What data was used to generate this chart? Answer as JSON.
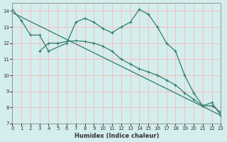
{
  "xlabel": "Humidex (Indice chaleur)",
  "xlim": [
    0,
    23
  ],
  "ylim": [
    7,
    14.5
  ],
  "yticks": [
    7,
    8,
    9,
    10,
    11,
    12,
    13,
    14
  ],
  "xticks": [
    0,
    1,
    2,
    3,
    4,
    5,
    6,
    7,
    8,
    9,
    10,
    11,
    12,
    13,
    14,
    15,
    16,
    17,
    18,
    19,
    20,
    21,
    22,
    23
  ],
  "bg_color": "#d4eded",
  "line_color": "#2e7d6e",
  "grid_color": "#f5bfbf",
  "line1_x": [
    0,
    1,
    2,
    3,
    4,
    6,
    7,
    8,
    9,
    10,
    11,
    12,
    13,
    14,
    15,
    16,
    17,
    18,
    19,
    20,
    21,
    22,
    23
  ],
  "line1_y": [
    14.1,
    13.4,
    12.5,
    12.5,
    11.5,
    12.0,
    13.3,
    13.55,
    13.3,
    12.9,
    12.65,
    13.0,
    13.3,
    14.1,
    13.8,
    13.0,
    12.0,
    11.5,
    10.0,
    8.9,
    8.1,
    8.3,
    7.5
  ],
  "line2_x": [
    0,
    23
  ],
  "line2_y": [
    13.9,
    7.5
  ],
  "line3_x": [
    3,
    4,
    5,
    6,
    7,
    8,
    9,
    10,
    11,
    12,
    13,
    14,
    15,
    16,
    17,
    18,
    19,
    20,
    21,
    22,
    23
  ],
  "line3_y": [
    11.5,
    12.0,
    12.0,
    12.1,
    12.15,
    12.1,
    12.0,
    11.8,
    11.5,
    11.0,
    10.7,
    10.4,
    10.2,
    10.0,
    9.7,
    9.4,
    8.9,
    8.5,
    8.1,
    8.1,
    7.7
  ]
}
